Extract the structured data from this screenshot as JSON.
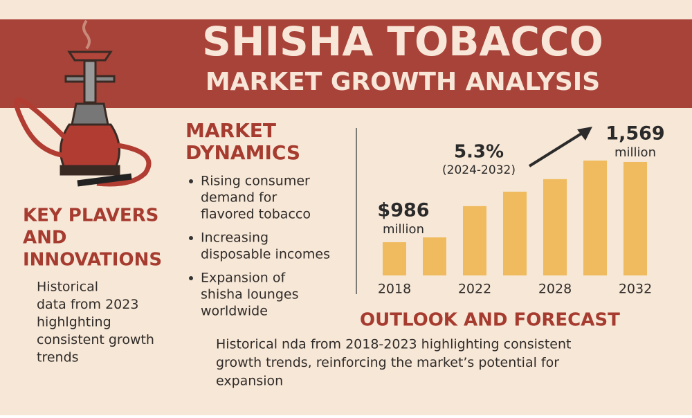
{
  "header": {
    "title": "SHISHA TOBACCO",
    "subtitle": "MARKET GROWTH ANALYSIS"
  },
  "key_players": {
    "heading": [
      "KEY PLAVERS",
      "AND",
      "INNOVATIONS"
    ],
    "body": [
      "Historical",
      "data from 2023",
      "highlghting",
      "consistent growth",
      "trends"
    ]
  },
  "market_dynamics": {
    "heading": [
      "MARKET",
      "DYNAMICS"
    ],
    "items": [
      [
        "Rising consumer",
        "demand for",
        "flavored tobacco"
      ],
      [
        "Increasing",
        "disposable incomes"
      ],
      [
        "Expansion of",
        "shisha lounges",
        "worldwide"
      ]
    ]
  },
  "outlook": {
    "heading": "OUTLOOK AND FORECAST",
    "body": [
      "Historical nda from 2018-2023 highlighting consistent",
      "growth trends, reinforcing the market’s potential for",
      "expansion"
    ]
  },
  "chart_data": {
    "type": "bar",
    "categories": [
      "2018",
      null,
      "2022",
      null,
      "2028",
      null,
      "2032"
    ],
    "values": [
      986,
      1021,
      1248,
      1353,
      1444,
      1579,
      1569
    ],
    "value_labels": [
      "$986",
      null,
      null,
      null,
      null,
      null,
      "1,569"
    ],
    "unit": "million",
    "growth_rate": "5.3%",
    "growth_period": "(2024-2032)",
    "color": "#f0bb5e"
  }
}
